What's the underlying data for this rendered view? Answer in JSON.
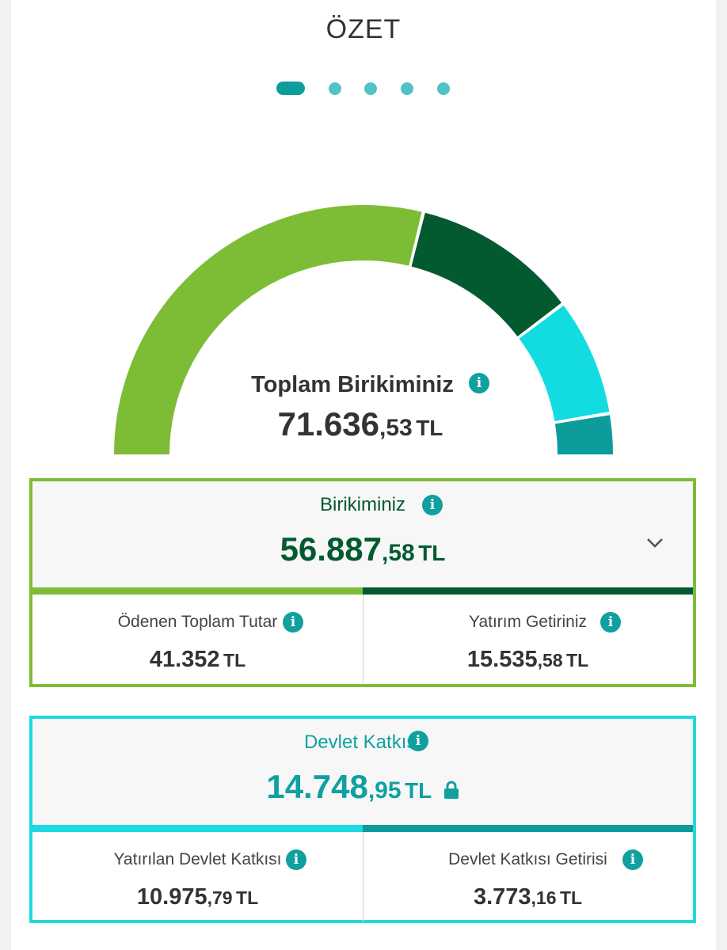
{
  "header": {
    "title": "ÖZET"
  },
  "pager": {
    "count": 5,
    "active_index": 0
  },
  "gauge": {
    "segments": [
      {
        "name": "Ödenen Toplam Tutar",
        "value": 41352,
        "color": "#7dbd36"
      },
      {
        "name": "Yatırım Getiriniz",
        "value": 15535.58,
        "color": "#035a30"
      },
      {
        "name": "Yatırılan Devlet Katkısı",
        "value": 10975.79,
        "color": "#12dce2"
      },
      {
        "name": "Devlet Katkısı Getirisi",
        "value": 3773.16,
        "color": "#0d9c9c"
      }
    ],
    "total_label": "Toplam Birikiminiz",
    "total_int": "71.636",
    "total_dec": ",53",
    "total_unit": "TL"
  },
  "savings": {
    "label": "Birikiminiz",
    "value_int": "56.887",
    "value_dec": ",58",
    "unit": "TL",
    "accent_color": "#7dbd36",
    "value_color": "#035a30",
    "paid": {
      "label": "Ödenen Toplam Tutar",
      "value_int": "41.352",
      "value_dec": "",
      "unit": "TL"
    },
    "return": {
      "label": "Yatırım Getiriniz",
      "value_int": "15.535",
      "value_dec": ",58",
      "unit": "TL"
    }
  },
  "state_contribution": {
    "label": "Devlet Katkısı",
    "value_int": "14.748",
    "value_dec": ",95",
    "unit": "TL",
    "accent_color": "#1edae0",
    "value_color": "#10a0a0",
    "invested": {
      "label": "Yatırılan Devlet Katkısı",
      "value_int": "10.975",
      "value_dec": ",79",
      "unit": "TL"
    },
    "return": {
      "label": "Devlet Katkısı Getirisi",
      "value_int": "3.773",
      "value_dec": ",16",
      "unit": "TL"
    }
  },
  "icons": {
    "info": "i"
  }
}
